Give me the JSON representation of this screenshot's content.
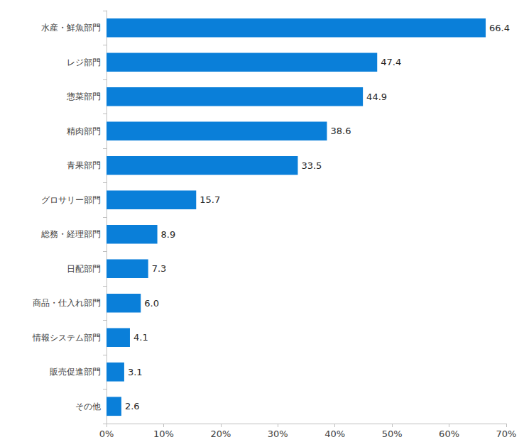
{
  "chart_data": {
    "type": "bar",
    "orientation": "horizontal",
    "categories": [
      "水産・鮮魚部門",
      "レジ部門",
      "惣菜部門",
      "精肉部門",
      "青果部門",
      "グロサリー部門",
      "総務・経理部門",
      "日配部門",
      "商品・仕入れ部門",
      "情報システム部門",
      "販売促進部門",
      "その他"
    ],
    "values": [
      66.4,
      47.4,
      44.9,
      38.6,
      33.5,
      15.7,
      8.9,
      7.3,
      6.0,
      4.1,
      3.1,
      2.6
    ],
    "value_labels": [
      "66.4",
      "47.4",
      "44.9",
      "38.6",
      "33.5",
      "15.7",
      "8.9",
      "7.3",
      "6.0",
      "4.1",
      "3.1",
      "2.6"
    ],
    "color": "#0a7fd9",
    "xlim": [
      0,
      70
    ],
    "xticks": [
      {
        "value": 0,
        "label": "0%"
      },
      {
        "value": 10,
        "label": "10%"
      },
      {
        "value": 20,
        "label": "20%"
      },
      {
        "value": 30,
        "label": "30%"
      },
      {
        "value": 40,
        "label": "40%"
      },
      {
        "value": 50,
        "label": "50%"
      },
      {
        "value": 60,
        "label": "60%"
      },
      {
        "value": 70,
        "label": "70%"
      }
    ],
    "grid": false,
    "data_labels": true
  }
}
